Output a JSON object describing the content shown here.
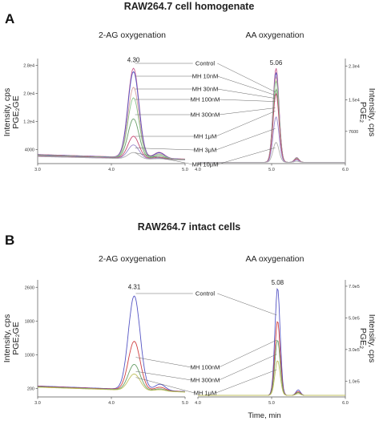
{
  "figure": {
    "panel_a": {
      "letter": "A",
      "title": "RAW264.7 cell homogenate"
    },
    "panel_b": {
      "letter": "B",
      "title": "RAW264.7 intact cells"
    },
    "x_axis_label": "Time, min"
  },
  "chart_data": [
    {
      "type": "line",
      "title": "2-AG oxygenation",
      "ylabel": "Intensity, cps\nPGE₂GE",
      "xlim": [
        3.0,
        5.0
      ],
      "ylim": [
        0,
        29000
      ],
      "x_ticks": [
        "3.0",
        "4.0",
        "5.0"
      ],
      "y_ticks": [
        {
          "label": "2.8e4",
          "value": 28000
        },
        {
          "label": "2.0e4",
          "value": 20000
        },
        {
          "label": "1.2e4",
          "value": 12000
        },
        {
          "label": "4000",
          "value": 4000
        }
      ],
      "peak_label": "4.30",
      "peak_x": 4.3,
      "peak_sigma": 0.075,
      "series": [
        {
          "name": "Control",
          "color": "#cc5f8f",
          "peak": 28000,
          "baseline": 2600
        },
        {
          "name": "MH 10nM",
          "color": "#5555c4",
          "peak": 27000,
          "baseline": 2500
        },
        {
          "name": "MH 30nM",
          "color": "#d9a0a0",
          "peak": 22500,
          "baseline": 2400
        },
        {
          "name": "MH 100nM",
          "color": "#8cc48c",
          "peak": 19500,
          "baseline": 2400
        },
        {
          "name": "MH 300nM",
          "color": "#6aa06a",
          "peak": 13500,
          "baseline": 2300
        },
        {
          "name": "MH 1μM",
          "color": "#c64b73",
          "peak": 8500,
          "baseline": 2200
        },
        {
          "name": "MH 3μM",
          "color": "#9a88cc",
          "peak": 6000,
          "baseline": 2100
        },
        {
          "name": "MH 10μM",
          "color": "#b0b0b0",
          "peak": 3800,
          "baseline": 2000
        }
      ]
    },
    {
      "type": "line",
      "title": "AA oxygenation",
      "ylabel": "Intensity, cps\nPGE₂",
      "xlim": [
        4.0,
        6.0
      ],
      "ylim": [
        0,
        24000
      ],
      "x_ticks": [
        "4.0",
        "5.0",
        "6.0"
      ],
      "y_ticks": [
        {
          "label": "2.3e4",
          "value": 23000
        },
        {
          "label": "1.5e4",
          "value": 15000
        },
        {
          "label": "7600",
          "value": 7600
        }
      ],
      "peak_label": "5.06",
      "peak_x": 5.06,
      "peak_sigma": 0.04,
      "series": [
        {
          "name": "Control",
          "color": "#cc5f8f",
          "peak": 22500,
          "baseline": 300
        },
        {
          "name": "MH 10nM",
          "color": "#5555c4",
          "peak": 21500,
          "baseline": 300
        },
        {
          "name": "MH 30nM",
          "color": "#d9a0a0",
          "peak": 20500,
          "baseline": 300
        },
        {
          "name": "MH 100nM",
          "color": "#8cc48c",
          "peak": 19500,
          "baseline": 300
        },
        {
          "name": "MH 300nM",
          "color": "#6aa06a",
          "peak": 17500,
          "baseline": 300
        },
        {
          "name": "MH 1μM",
          "color": "#c64b73",
          "peak": 16500,
          "baseline": 300
        },
        {
          "name": "MH 3μM",
          "color": "#9a88cc",
          "peak": 11000,
          "baseline": 300
        },
        {
          "name": "MH 10μM",
          "color": "#b0b0b0",
          "peak": 5000,
          "baseline": 300
        }
      ]
    },
    {
      "type": "line",
      "title": "2-AG oxygenation",
      "ylabel": "Intensity, cps\nPGE₂GE",
      "xlim": [
        3.0,
        5.0
      ],
      "ylim": [
        0,
        2700
      ],
      "x_ticks": [
        "3.0",
        "4.0",
        "5.0"
      ],
      "y_ticks": [
        {
          "label": "2600",
          "value": 2600
        },
        {
          "label": "1800",
          "value": 1800
        },
        {
          "label": "1000",
          "value": 1000
        },
        {
          "label": "200",
          "value": 200
        }
      ],
      "peak_label": "4.31",
      "peak_x": 4.31,
      "peak_sigma": 0.08,
      "series": [
        {
          "name": "Control",
          "color": "#5555c4",
          "peak": 2480,
          "baseline": 260
        },
        {
          "name": "MH 100nM",
          "color": "#d04040",
          "peak": 1400,
          "baseline": 250
        },
        {
          "name": "MH 300nM",
          "color": "#6aa06a",
          "peak": 850,
          "baseline": 240
        },
        {
          "name": "MH 1μM",
          "color": "#c0c060",
          "peak": 620,
          "baseline": 230
        }
      ]
    },
    {
      "type": "line",
      "title": "AA oxygenation",
      "ylabel": "Intensity, cps\nPGE₂",
      "xlim": [
        4.0,
        6.0
      ],
      "ylim": [
        0,
        720000
      ],
      "x_ticks": [
        "4.0",
        "5.0",
        "6.0"
      ],
      "y_ticks": [
        {
          "label": "7.0e5",
          "value": 700000
        },
        {
          "label": "5.0e5",
          "value": 500000
        },
        {
          "label": "3.0e5",
          "value": 300000
        },
        {
          "label": "1.0e5",
          "value": 100000
        }
      ],
      "peak_label": "5.08",
      "peak_x": 5.08,
      "peak_sigma": 0.035,
      "series": [
        {
          "name": "Control",
          "color": "#5555c4",
          "peak": 690000,
          "baseline": 10000
        },
        {
          "name": "MH 100nM",
          "color": "#d04040",
          "peak": 480000,
          "baseline": 10000
        },
        {
          "name": "MH 300nM",
          "color": "#6aa06a",
          "peak": 360000,
          "baseline": 10000
        },
        {
          "name": "MH 1μM",
          "color": "#c0c060",
          "peak": 230000,
          "baseline": 10000
        }
      ]
    }
  ]
}
